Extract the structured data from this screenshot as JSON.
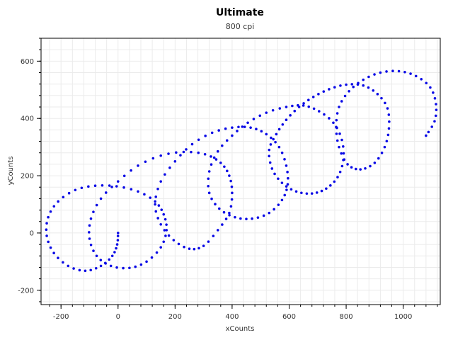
{
  "chart_data": {
    "type": "scatter",
    "title": "Ultimate",
    "subtitle": "800 cpi",
    "xlabel": "xCounts",
    "ylabel": "yCounts",
    "xlim": [
      -270,
      1130
    ],
    "ylim": [
      -250,
      680
    ],
    "xticks": [
      -200,
      0,
      200,
      400,
      600,
      800,
      1000
    ],
    "yticks": [
      -200,
      0,
      200,
      400,
      600
    ],
    "grid": true,
    "colors": {
      "series": "#0a0ae6",
      "axis": "#000000",
      "grid": "#ebebeb"
    },
    "series": [
      {
        "points": [
          [
            0,
            0
          ],
          [
            -3,
            -40
          ],
          [
            -20,
            -80
          ],
          [
            -60,
            -115
          ],
          [
            -115,
            -132
          ],
          [
            -175,
            -115
          ],
          [
            -225,
            -70
          ],
          [
            -250,
            -10
          ],
          [
            -245,
            55
          ],
          [
            -210,
            110
          ],
          [
            -150,
            150
          ],
          [
            -80,
            165
          ],
          [
            -5,
            163
          ],
          [
            70,
            145
          ],
          [
            130,
            110
          ],
          [
            160,
            65
          ],
          [
            170,
            10
          ],
          [
            150,
            -50
          ],
          [
            100,
            -100
          ],
          [
            40,
            -122
          ],
          [
            -25,
            -115
          ],
          [
            -75,
            -80
          ],
          [
            -100,
            -20
          ],
          [
            -95,
            50
          ],
          [
            -60,
            120
          ],
          [
            0,
            180
          ],
          [
            70,
            235
          ],
          [
            150,
            270
          ],
          [
            230,
            283
          ],
          [
            305,
            275
          ],
          [
            360,
            245
          ],
          [
            390,
            200
          ],
          [
            400,
            140
          ],
          [
            390,
            70
          ],
          [
            350,
            10
          ],
          [
            300,
            -45
          ],
          [
            250,
            -55
          ],
          [
            195,
            -25
          ],
          [
            150,
            30
          ],
          [
            130,
            100
          ],
          [
            150,
            180
          ],
          [
            200,
            250
          ],
          [
            260,
            310
          ],
          [
            330,
            350
          ],
          [
            400,
            368
          ],
          [
            465,
            368
          ],
          [
            520,
            345
          ],
          [
            565,
            300
          ],
          [
            590,
            235
          ],
          [
            595,
            170
          ],
          [
            575,
            115
          ],
          [
            530,
            70
          ],
          [
            470,
            50
          ],
          [
            410,
            55
          ],
          [
            355,
            85
          ],
          [
            320,
            140
          ],
          [
            320,
            215
          ],
          [
            350,
            285
          ],
          [
            400,
            340
          ],
          [
            455,
            385
          ],
          [
            520,
            420
          ],
          [
            590,
            440
          ],
          [
            650,
            445
          ],
          [
            705,
            425
          ],
          [
            755,
            385
          ],
          [
            785,
            325
          ],
          [
            790,
            255
          ],
          [
            770,
            195
          ],
          [
            730,
            155
          ],
          [
            680,
            138
          ],
          [
            625,
            145
          ],
          [
            575,
            175
          ],
          [
            540,
            225
          ],
          [
            530,
            290
          ],
          [
            555,
            345
          ],
          [
            590,
            395
          ],
          [
            635,
            440
          ],
          [
            685,
            475
          ],
          [
            740,
            502
          ],
          [
            800,
            518
          ],
          [
            860,
            515
          ],
          [
            910,
            485
          ],
          [
            945,
            435
          ],
          [
            950,
            365
          ],
          [
            935,
            300
          ],
          [
            900,
            245
          ],
          [
            850,
            222
          ],
          [
            805,
            240
          ],
          [
            775,
            300
          ],
          [
            765,
            370
          ],
          [
            775,
            440
          ],
          [
            810,
            495
          ],
          [
            860,
            535
          ],
          [
            920,
            560
          ],
          [
            985,
            565
          ],
          [
            1045,
            548
          ],
          [
            1095,
            508
          ],
          [
            1115,
            450
          ],
          [
            1110,
            390
          ],
          [
            1080,
            340
          ]
        ]
      }
    ]
  }
}
